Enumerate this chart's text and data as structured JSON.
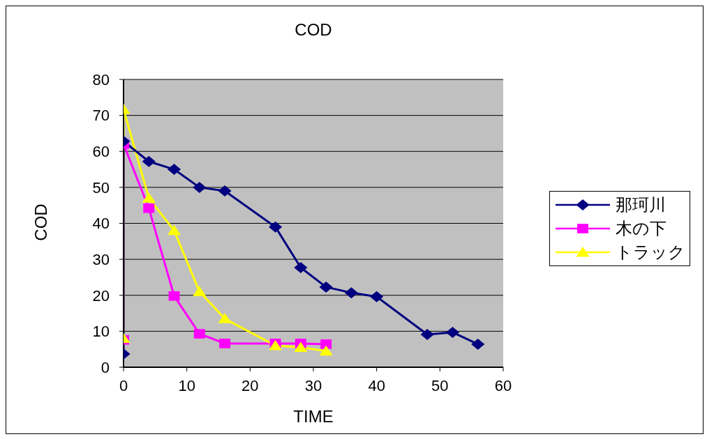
{
  "chart_data": {
    "type": "line",
    "title": "COD",
    "xlabel": "TIME",
    "ylabel": "COD",
    "xlim": [
      0,
      60
    ],
    "xticks": [
      0,
      10,
      20,
      30,
      40,
      50,
      60
    ],
    "ylim": [
      0,
      80
    ],
    "yticks": [
      0,
      10,
      20,
      30,
      40,
      50,
      60,
      70,
      80
    ],
    "grid": "y",
    "legend": "right",
    "line_style": "solid",
    "series": [
      {
        "name": "那珂川",
        "color": "#000080",
        "marker": "diamond",
        "x": [
          0,
          0,
          4,
          8,
          12,
          16,
          24,
          28,
          32,
          36,
          40,
          48,
          52,
          56
        ],
        "values": [
          3.7,
          62.8,
          57.2,
          55,
          50,
          49,
          39,
          27.7,
          22.3,
          20.7,
          19.6,
          9.1,
          9.7,
          6.4
        ]
      },
      {
        "name": "木の下",
        "color": "#ff00ff",
        "marker": "square",
        "x": [
          0,
          0,
          4,
          8,
          12,
          16,
          24,
          28,
          32
        ],
        "values": [
          7.6,
          62,
          44.2,
          19.8,
          9.3,
          6.6,
          6.6,
          6.6,
          6.4
        ]
      },
      {
        "name": "トラック",
        "color": "#ffff00",
        "marker": "triangle",
        "x": [
          0,
          0,
          4,
          8,
          12,
          16,
          24,
          28,
          32
        ],
        "values": [
          8,
          71.7,
          47,
          38,
          21,
          13.5,
          6,
          5.5,
          4.5
        ]
      }
    ]
  }
}
